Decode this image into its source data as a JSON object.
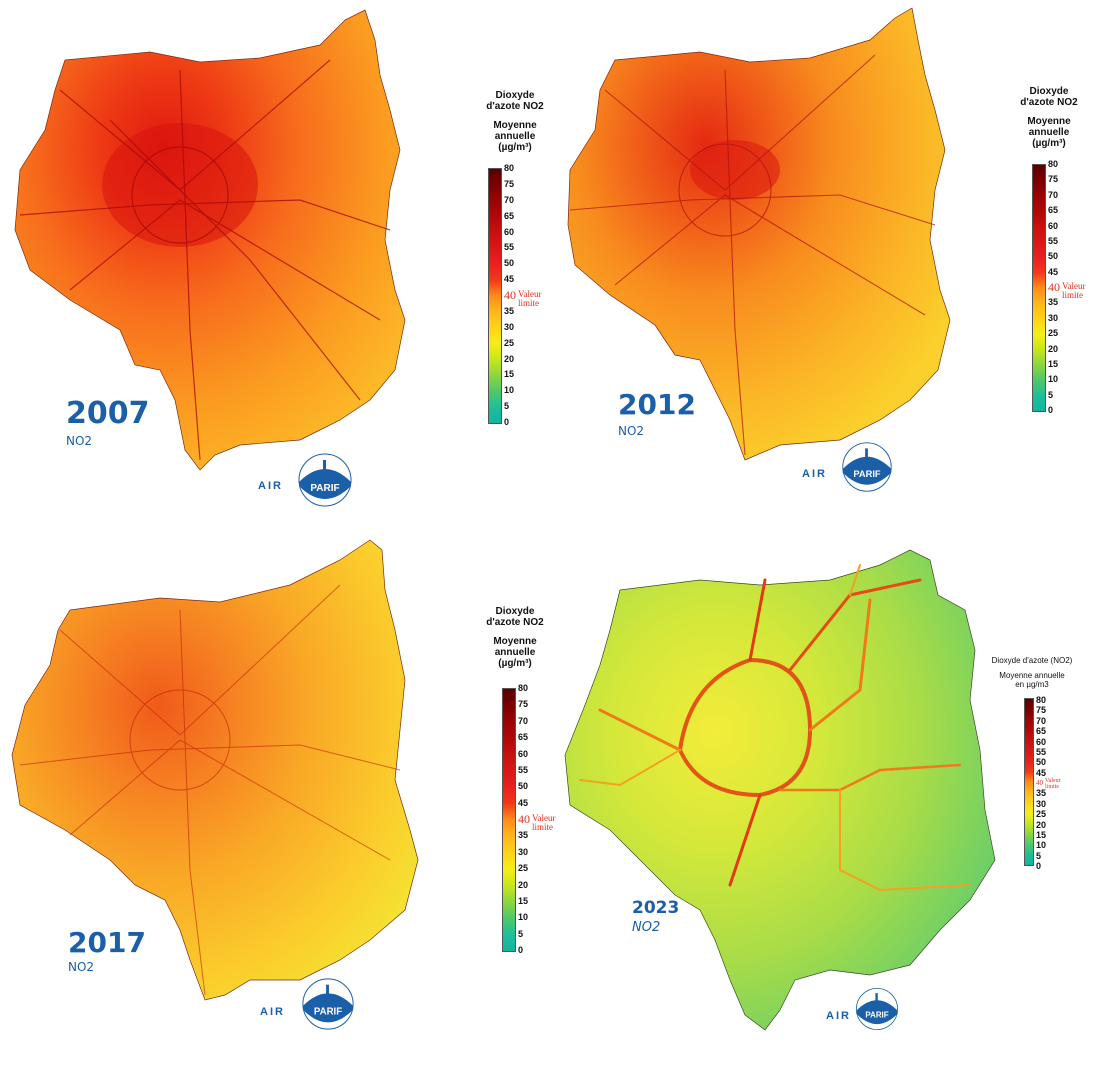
{
  "panels": [
    {
      "year": "2007",
      "pollutant": "NO2",
      "logo_text": "AIR",
      "logo_badge": "PARIF"
    },
    {
      "year": "2012",
      "pollutant": "NO2",
      "logo_text": "AIR",
      "logo_badge": "PARIF"
    },
    {
      "year": "2017",
      "pollutant": "NO2",
      "logo_text": "AIR",
      "logo_badge": "PARIF"
    },
    {
      "year": "2023",
      "pollutant": "NO2",
      "logo_text": "AIR",
      "logo_badge": "PARIF"
    }
  ],
  "legend_old": {
    "title_line1": "Dioxyde",
    "title_line2": "d'azote NO2",
    "sub_line1": "Moyenne",
    "sub_line2": "annuelle",
    "unit": "(µg/m³)",
    "ticks": [
      "80",
      "75",
      "70",
      "65",
      "60",
      "55",
      "50",
      "45",
      "40",
      "35",
      "30",
      "25",
      "20",
      "15",
      "10",
      "5",
      "0"
    ],
    "limit_line1": "Valeur",
    "limit_line2": "limite"
  },
  "legend_new": {
    "title": "Dioxyde d'azote (NO2)",
    "sub_line1": "Moyenne annuelle",
    "sub_line2": "en µg/m3",
    "ticks": [
      "80",
      "75",
      "70",
      "65",
      "60",
      "55",
      "50",
      "45",
      "40",
      "35",
      "30",
      "25",
      "20",
      "15",
      "10",
      "5",
      "0"
    ],
    "limit_line1": "Valeur",
    "limit_line2": "limite"
  },
  "colors": {
    "brand_blue": "#1a5fa8",
    "limit_red": "#e2321a",
    "scale": [
      "#5a0000",
      "#7a0000",
      "#9a0404",
      "#b00808",
      "#c81010",
      "#d81818",
      "#e82020",
      "#f23a1a",
      "#ff8c1a",
      "#ffb81a",
      "#ffd21a",
      "#f5ee1a",
      "#c8e61a",
      "#8cd640",
      "#50c86a",
      "#1ebf9a",
      "#14b4a0"
    ]
  }
}
